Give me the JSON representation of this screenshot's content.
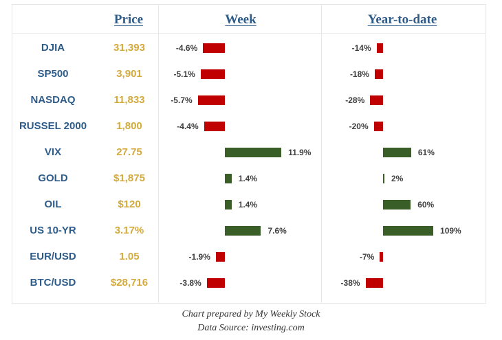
{
  "headers": {
    "price": "Price",
    "week": "Week",
    "ytd": "Year-to-date"
  },
  "colors": {
    "ticker": "#2e5c8a",
    "price": "#d4aa3c",
    "negative": "#c00000",
    "positive": "#3a5e27"
  },
  "chart_data": {
    "type": "bar",
    "categories": [
      "DJIA",
      "SP500",
      "NASDAQ",
      "RUSSEL 2000",
      "VIX",
      "GOLD",
      "OIL",
      "US 10-YR",
      "EUR/USD",
      "BTC/USD"
    ],
    "prices": [
      "31,393",
      "3,901",
      "11,833",
      "1,800",
      "27.75",
      "$1,875",
      "$120",
      "3.17%",
      "1.05",
      "$28,716"
    ],
    "series": [
      {
        "name": "Week",
        "values": [
          -4.6,
          -5.1,
          -5.7,
          -4.4,
          11.9,
          1.4,
          1.4,
          7.6,
          -1.9,
          -3.8
        ],
        "labels": [
          "-4.6%",
          "-5.1%",
          "-5.7%",
          "-4.4%",
          "11.9%",
          "1.4%",
          "1.4%",
          "7.6%",
          "-1.9%",
          "-3.8%"
        ]
      },
      {
        "name": "Year-to-date",
        "values": [
          -14,
          -18,
          -28,
          -20,
          61,
          2,
          60,
          109,
          -7,
          -38
        ],
        "labels": [
          "-14%",
          "-18%",
          "-28%",
          "-20%",
          "61%",
          "2%",
          "60%",
          "109%",
          "-7%",
          "-38%"
        ]
      }
    ]
  },
  "footer": {
    "line1": "Chart prepared by My Weekly Stock",
    "line2": "Data Source: investing.com"
  }
}
